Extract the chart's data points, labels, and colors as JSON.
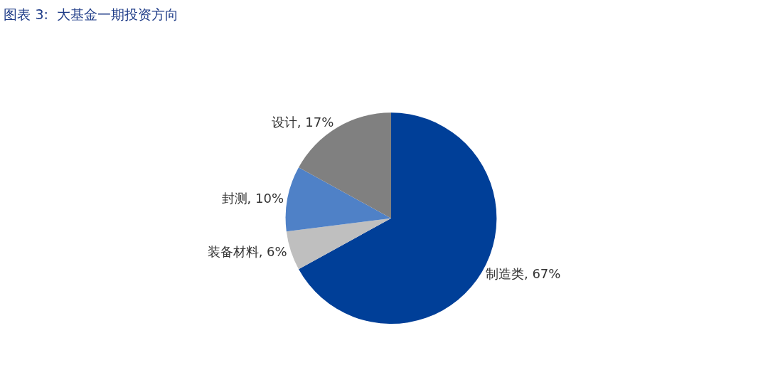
{
  "chart_data": {
    "type": "pie",
    "title": "图表 3:  大基金一期投资方向",
    "categories": [
      "制造类",
      "装备材料",
      "封测",
      "设计"
    ],
    "values": [
      67,
      6,
      10,
      17
    ],
    "colors": [
      "#003f98",
      "#bfbfbf",
      "#4f81c7",
      "#808080"
    ],
    "value_labels": [
      "67%",
      "6%",
      "10%",
      "17%"
    ],
    "legend": false
  }
}
